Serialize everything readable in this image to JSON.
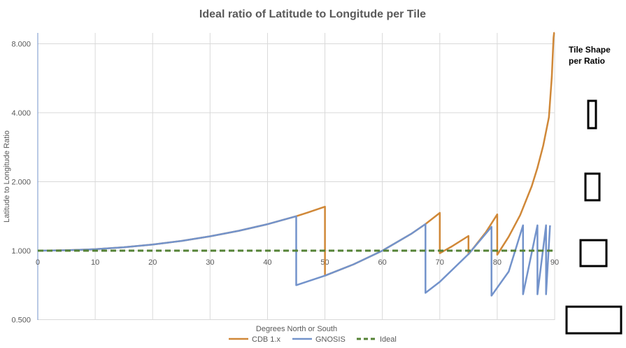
{
  "chart_data": {
    "type": "line",
    "title": "Ideal ratio of Latitude to Longitude per Tile",
    "xlabel": "Degrees North or South",
    "ylabel": "Latitude to Longitude Ratio",
    "xlim": [
      0,
      90
    ],
    "ylim": [
      0.5,
      9.0
    ],
    "yscale": "log2",
    "x_ticks": [
      "0",
      "10",
      "20",
      "30",
      "40",
      "50",
      "60",
      "70",
      "80",
      "90"
    ],
    "y_ticks": [
      "0.500",
      "1.000",
      "2.000",
      "4.000",
      "8.000"
    ],
    "grid": true,
    "legend_position": "bottom",
    "series": [
      {
        "name": "CDB 1.x",
        "color": "#d08838",
        "style": "solid",
        "points": [
          [
            0,
            1.0
          ],
          [
            5,
            1.004
          ],
          [
            10,
            1.015
          ],
          [
            15,
            1.035
          ],
          [
            20,
            1.064
          ],
          [
            25,
            1.103
          ],
          [
            30,
            1.155
          ],
          [
            35,
            1.221
          ],
          [
            40,
            1.305
          ],
          [
            45,
            1.414
          ],
          [
            47,
            1.466
          ],
          [
            50,
            1.556
          ],
          [
            50,
            0.778
          ],
          [
            55,
            0.872
          ],
          [
            60,
            1.0
          ],
          [
            65,
            1.183
          ],
          [
            67.5,
            1.307
          ],
          [
            70,
            1.462
          ],
          [
            70,
            0.975
          ],
          [
            72,
            1.04
          ],
          [
            75,
            1.159
          ],
          [
            75,
            0.965
          ],
          [
            78,
            1.202
          ],
          [
            80,
            1.44
          ],
          [
            80,
            0.96
          ],
          [
            82,
            1.15
          ],
          [
            84,
            1.43
          ],
          [
            86,
            1.91
          ],
          [
            87,
            2.3
          ],
          [
            88,
            2.87
          ],
          [
            89,
            3.82
          ],
          [
            89.5,
            5.73
          ],
          [
            89.8,
            8.5
          ],
          [
            89.9,
            9.0
          ],
          [
            90,
            9.0
          ]
        ]
      },
      {
        "name": "GNOSIS",
        "color": "#7393cb",
        "style": "solid",
        "points": [
          [
            0,
            1.0
          ],
          [
            5,
            1.004
          ],
          [
            10,
            1.015
          ],
          [
            15,
            1.035
          ],
          [
            20,
            1.064
          ],
          [
            25,
            1.103
          ],
          [
            30,
            1.155
          ],
          [
            35,
            1.221
          ],
          [
            40,
            1.305
          ],
          [
            45,
            1.414
          ],
          [
            45,
            0.707
          ],
          [
            50,
            0.778
          ],
          [
            55,
            0.872
          ],
          [
            60,
            1.0
          ],
          [
            65,
            1.183
          ],
          [
            67.5,
            1.307
          ],
          [
            67.5,
            0.654
          ],
          [
            70,
            0.731
          ],
          [
            75,
            0.966
          ],
          [
            79,
            1.27
          ],
          [
            79,
            0.636
          ],
          [
            82,
            0.81
          ],
          [
            84.5,
            1.29
          ],
          [
            84.5,
            0.645
          ],
          [
            87,
            1.29
          ],
          [
            87,
            0.645
          ],
          [
            88.5,
            1.29
          ],
          [
            88.5,
            0.645
          ],
          [
            89.2,
            1.29
          ]
        ]
      },
      {
        "name": "Ideal",
        "color": "#548235",
        "style": "dashed",
        "points": [
          [
            0,
            1.0
          ],
          [
            90,
            1.0
          ]
        ]
      }
    ]
  },
  "side_panel": {
    "title_line1": "Tile Shape",
    "title_line2": "per Ratio",
    "shapes": [
      {
        "name": "tile-shape-ratio-4-icon",
        "ratio": 4
      },
      {
        "name": "tile-shape-ratio-2-icon",
        "ratio": 2
      },
      {
        "name": "tile-shape-ratio-1-icon",
        "ratio": 1
      },
      {
        "name": "tile-shape-ratio-0.5-icon",
        "ratio": 0.5
      }
    ]
  }
}
